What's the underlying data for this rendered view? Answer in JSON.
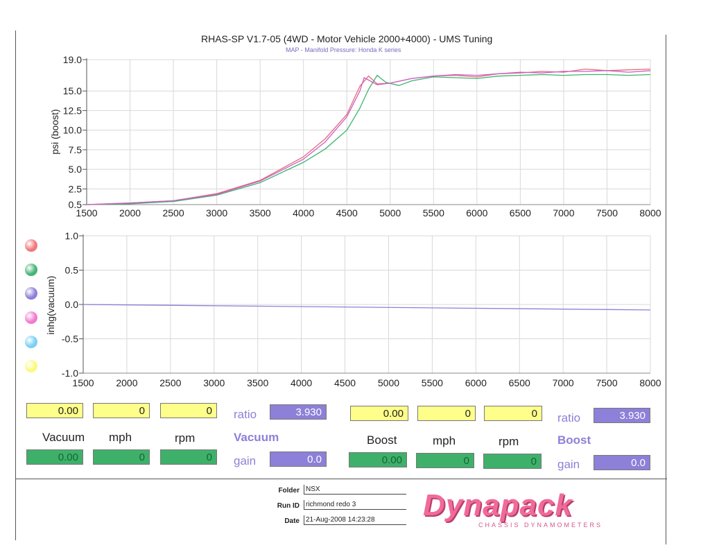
{
  "header": {
    "title": "RHAS-SP V1.7-05   (4WD - Motor Vehicle 2000+4000) - UMS Tuning",
    "subtitle": "MAP - Manifold Pressure: Honda K series"
  },
  "chart_data": [
    {
      "type": "line",
      "ylabel": "psi (boost)",
      "xlabel": "",
      "xlim": [
        1500,
        8000
      ],
      "ylim": [
        0.5,
        19.0
      ],
      "xticks": [
        "1500",
        "2000",
        "2500",
        "3000",
        "3500",
        "4000",
        "4500",
        "5000",
        "5500",
        "6000",
        "6500",
        "7000",
        "7500",
        "8000"
      ],
      "yticks": [
        "0.5",
        "2.5",
        "5.0",
        "7.5",
        "10.0",
        "12.5",
        "15.0",
        "19.0"
      ],
      "ytick_values": [
        0.5,
        2.5,
        5.0,
        7.5,
        10.0,
        12.5,
        15.0,
        19.0
      ],
      "grid": true,
      "series": [
        {
          "color": "#e46a7a",
          "x": [
            1500,
            2000,
            2500,
            3000,
            3500,
            4000,
            4250,
            4500,
            4650,
            4750,
            4850,
            5000,
            5250,
            5500,
            5750,
            6000,
            6250,
            6500,
            6750,
            7000,
            7250,
            7500,
            7750,
            8000
          ],
          "y": [
            0.5,
            0.7,
            1.0,
            1.9,
            3.6,
            6.6,
            8.9,
            12.0,
            15.6,
            16.9,
            15.9,
            16.0,
            16.6,
            16.9,
            17.0,
            16.8,
            17.2,
            17.3,
            17.5,
            17.4,
            17.8,
            17.6,
            17.7,
            17.8
          ]
        },
        {
          "color": "#3cb371",
          "x": [
            1500,
            2000,
            2500,
            3000,
            3500,
            4000,
            4250,
            4500,
            4650,
            4750,
            4850,
            4950,
            5100,
            5250,
            5500,
            5750,
            6000,
            6250,
            6500,
            6750,
            7000,
            7250,
            7500,
            7750,
            8000
          ],
          "y": [
            0.5,
            0.6,
            0.9,
            1.7,
            3.3,
            5.9,
            7.6,
            10.0,
            12.8,
            15.2,
            17.0,
            16.1,
            15.7,
            16.3,
            16.8,
            16.7,
            16.6,
            16.9,
            17.0,
            17.1,
            17.0,
            17.1,
            17.1,
            17.0,
            17.1
          ]
        },
        {
          "color": "#cc5fc2",
          "x": [
            1500,
            2000,
            2500,
            3000,
            3500,
            4000,
            4250,
            4500,
            4650,
            4700,
            4850,
            5000,
            5250,
            5500,
            5750,
            6000,
            6250,
            6500,
            6750,
            7000,
            7250,
            7500,
            7750,
            8000
          ],
          "y": [
            0.5,
            0.7,
            1.0,
            1.8,
            3.5,
            6.3,
            8.5,
            11.7,
            15.0,
            16.7,
            15.8,
            16.0,
            16.6,
            16.9,
            17.1,
            17.0,
            17.2,
            17.4,
            17.3,
            17.5,
            17.5,
            17.6,
            17.4,
            17.6
          ]
        }
      ]
    },
    {
      "type": "line",
      "ylabel": "inhg(vacuum)",
      "xlabel": "",
      "xlim": [
        1500,
        8000
      ],
      "ylim": [
        -1.0,
        1.0
      ],
      "xticks": [
        "1500",
        "2000",
        "2500",
        "3000",
        "3500",
        "4000",
        "4500",
        "5000",
        "5500",
        "6000",
        "6500",
        "7000",
        "7500",
        "8000"
      ],
      "yticks": [
        "-1.0",
        "-0.5",
        "0.0",
        "0.5",
        "1.0"
      ],
      "ytick_values": [
        -1.0,
        -0.5,
        0.0,
        0.5,
        1.0
      ],
      "grid": true,
      "series": [
        {
          "color": "#8d80d8",
          "x": [
            1500,
            8000
          ],
          "y": [
            0.0,
            -0.08
          ]
        }
      ]
    }
  ],
  "legend_colors": [
    "#f0787a",
    "#46b476",
    "#8d80d8",
    "#f07ad0",
    "#7ad0f4",
    "#fafa80"
  ],
  "vacuum": {
    "heading": "Vacuum",
    "mph_label": "mph",
    "rpm_label": "rpm",
    "name_label": "Vacuum",
    "ratio_label": "ratio",
    "gain_label": "gain",
    "top_value": "0.00",
    "top_mph": "0",
    "top_rpm": "0",
    "bottom_value": "0.00",
    "bottom_mph": "0",
    "bottom_rpm": "0",
    "ratio": "3.930",
    "gain": "0.0"
  },
  "boost": {
    "heading": "Boost",
    "mph_label": "mph",
    "rpm_label": "rpm",
    "name_label": "Boost",
    "ratio_label": "ratio",
    "gain_label": "gain",
    "top_value": "0.00",
    "top_mph": "0",
    "top_rpm": "0",
    "bottom_value": "0.00",
    "bottom_mph": "0",
    "bottom_rpm": "0",
    "ratio": "3.930",
    "gain": "0.0"
  },
  "footer": {
    "folder_label": "Folder",
    "folder": "NSX",
    "runid_label": "Run ID",
    "runid": "richmond redo 3",
    "date_label": "Date",
    "date": "21-Aug-2008  14:23:28",
    "logo": "Dynapack",
    "logo_sub": "CHASSIS    DYNAMOMETERS"
  }
}
